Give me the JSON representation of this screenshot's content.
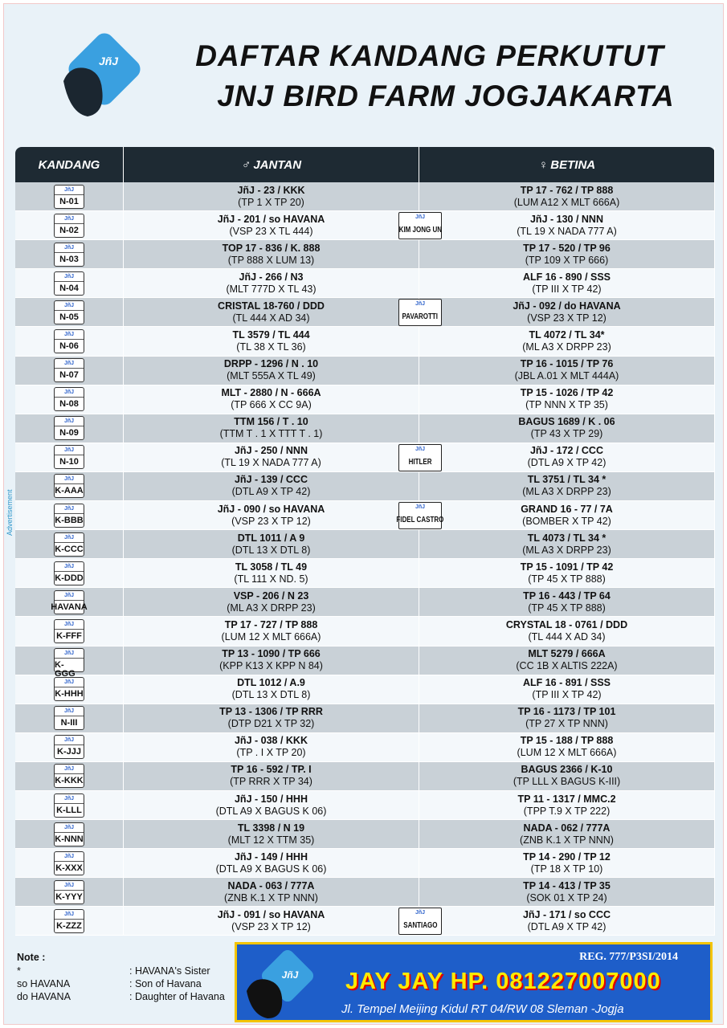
{
  "header": {
    "title_line1": "DAFTAR KANDANG PERKUTUT",
    "title_line2": "JNJ BIRD FARM JOGJAKARTA",
    "logo": "JñJ"
  },
  "side_text": "Advertisement",
  "table": {
    "columns": [
      "KANDANG",
      "♂ JANTAN",
      "♀ BETINA"
    ],
    "plate_brand": "JñJ",
    "rows": [
      [
        "N-01",
        "JñJ - 23 / KKK",
        "(TP 1 X TP 20)",
        null,
        "TP 17 - 762 / TP 888",
        "(LUM A12  X  MLT 666A)"
      ],
      [
        "N-02",
        "JñJ - 201 / so HAVANA",
        "(VSP 23  X  TL 444)",
        "KIM JONG UN",
        "JñJ - 130 / NNN",
        "(TL 19  X  NADA 777 A)"
      ],
      [
        "N-03",
        "TOP 17 - 836 / K. 888",
        "(TP 888  X  LUM 13)",
        null,
        "TP 17 - 520 / TP 96",
        "(TP 109  X  TP 666)"
      ],
      [
        "N-04",
        "JñJ - 266 / N3",
        "(MLT 777D  X  TL 43)",
        null,
        "ALF 16 - 890 / SSS",
        "(TP III  X  TP 42)"
      ],
      [
        "N-05",
        "CRISTAL 18-760 / DDD",
        "(TL 444  X AD 34)",
        "PAVAROTTI",
        "JñJ - 092 / do HAVANA",
        "(VSP 23  X  TP 12)"
      ],
      [
        "N-06",
        "TL 3579 / TL 444",
        "(TL 38  X  TL 36)",
        null,
        "TL 4072 / TL 34*",
        "(ML A3  X  DRPP 23)"
      ],
      [
        "N-07",
        "DRPP - 1296 / N . 10",
        "(MLT 555A  X  TL 49)",
        null,
        "TP 16 - 1015 / TP 76",
        "(JBL A.01  X  MLT 444A)"
      ],
      [
        "N-08",
        "MLT - 2880 / N - 666A",
        "(TP 666  X  CC 9A)",
        null,
        "TP 15 - 1026 / TP 42",
        "(TP NNN  X  TP 35)"
      ],
      [
        "N-09",
        "TTM 156 / T . 10",
        "(TTM T . 1  X  TTT T . 1)",
        null,
        "BAGUS 1689 / K . 06",
        "(TP 43  X  TP 29)"
      ],
      [
        "N-10",
        "JñJ - 250 / NNN",
        "(TL 19  X  NADA 777 A)",
        "HITLER",
        "JñJ - 172 / CCC",
        "(DTL A9  X  TP 42)"
      ],
      [
        "K-AAA",
        "JñJ - 139 / CCC",
        "(DTL A9  X  TP 42)",
        null,
        "TL 3751 / TL 34 *",
        "(ML A3  X  DRPP 23)"
      ],
      [
        "K-BBB",
        "JñJ - 090 / so HAVANA",
        "(VSP 23  X  TP 12)",
        "FIDEL CASTRO",
        "GRAND 16 - 77 / 7A",
        "(BOMBER X TP 42)"
      ],
      [
        "K-CCC",
        "DTL 1011 / A 9",
        "(DTL 13  X  DTL 8)",
        null,
        "TL 4073 / TL 34 *",
        "(ML A3  X  DRPP 23)"
      ],
      [
        "K-DDD",
        "TL 3058 / TL 49",
        "(TL 111  X  ND. 5)",
        null,
        "TP 15 - 1091 / TP 42",
        "(TP 45 X TP 888)"
      ],
      [
        "HAVANA",
        "VSP - 206 / N 23",
        "(ML A3  X  DRPP 23)",
        null,
        "TP 16 - 443  /  TP 64",
        "(TP 45 X TP 888)"
      ],
      [
        "K-FFF",
        "TP 17 - 727 / TP 888",
        "(LUM 12  X  MLT 666A)",
        null,
        "CRYSTAL 18 - 0761 / DDD",
        "(TL 444  X  AD 34)"
      ],
      [
        "K-GGG",
        "TP 13 - 1090 / TP 666",
        "(KPP K13  X  KPP N 84)",
        null,
        "MLT 5279 / 666A",
        "(CC 1B  X  ALTIS 222A)"
      ],
      [
        "K-HHH",
        "DTL 1012 / A.9",
        "(DTL 13  X  DTL 8)",
        null,
        "ALF 16 - 891 / SSS",
        "(TP III  X  TP 42)"
      ],
      [
        "N-III",
        "TP 13 - 1306 / TP RRR",
        "(DTP D21  X  TP 32)",
        null,
        "TP 16 - 1173 / TP 101",
        "(TP 27  X  TP NNN)"
      ],
      [
        "K-JJJ",
        "JñJ - 038 / KKK",
        "(TP . I  X  TP 20)",
        null,
        "TP 15 - 188 / TP 888",
        "(LUM 12  X  MLT 666A)"
      ],
      [
        "K-KKK",
        "TP 16 - 592 / TP. I",
        "(TP RRR  X  TP 34)",
        null,
        "BAGUS 2366 / K-10",
        "(TP LLL  X  BAGUS K-III)"
      ],
      [
        "K-LLL",
        "JñJ - 150 / HHH",
        "(DTL A9  X  BAGUS K 06)",
        null,
        "TP 11 - 1317 / MMC.2",
        "(TPP T.9  X  TP 222)"
      ],
      [
        "K-NNN",
        "TL 3398 / N 19",
        "(MLT 12  X  TTM 35)",
        null,
        "NADA - 062 / 777A",
        "(ZNB K.1  X  TP NNN)"
      ],
      [
        "K-XXX",
        "JñJ - 149 / HHH",
        "(DTL A9  X  BAGUS K 06)",
        null,
        "TP 14 - 290 / TP 12",
        "(TP 18  X  TP 10)"
      ],
      [
        "K-YYY",
        "NADA - 063 / 777A",
        "(ZNB K.1  X  TP NNN)",
        null,
        "TP 14 - 413 / TP 35",
        "(SOK 01  X  TP 24)"
      ],
      [
        "K-ZZZ",
        "JñJ - 091 / so HAVANA",
        "(VSP 23  X  TP 12)",
        "SANTIAGO",
        "JñJ - 171 / so CCC",
        "(DTL A9  X  TP 42)"
      ]
    ]
  },
  "notes": {
    "title": "Note :",
    "items": [
      [
        "*",
        ": HAVANA's Sister"
      ],
      [
        "so HAVANA",
        ": Son of Havana"
      ],
      [
        "do HAVANA",
        ": Daughter of Havana"
      ]
    ]
  },
  "banner": {
    "logo": "JñJ",
    "reg": "REG. 777/P3SI/2014",
    "contact": "JAY JAY HP. 081227007000",
    "address": "Jl. Tempel Meijing Kidul RT 04/RW 08 Sleman -Jogja"
  }
}
